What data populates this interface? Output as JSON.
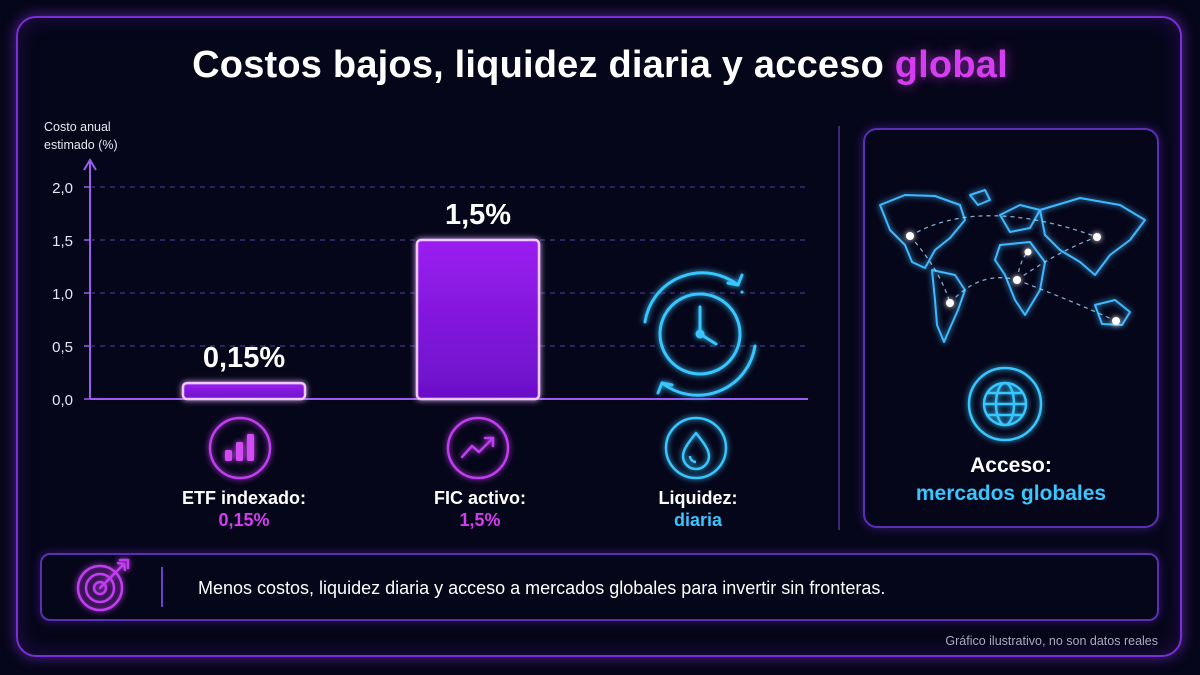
{
  "title": {
    "main": "Costos bajos, liquidez diaria y acceso",
    "accent": "global"
  },
  "colors": {
    "background": "#06061a",
    "purple": "#c03cf0",
    "bar_fill": "#8a16e6",
    "cyan": "#39c6ff",
    "grid": "#3a2f72"
  },
  "chart_data": {
    "type": "bar",
    "ylabel": "Costo anual estimado (%)",
    "ylim": [
      0,
      2.0
    ],
    "yticks": [
      "0,0",
      "0,5",
      "1,0",
      "1,5",
      "2,0"
    ],
    "categories": [
      "ETF indexado",
      "FIC activo"
    ],
    "values": [
      0.15,
      1.5
    ],
    "value_labels": [
      "0,15%",
      "1,5%"
    ],
    "grid": true
  },
  "categories": [
    {
      "line1": "ETF indexado:",
      "line2": "0,15%",
      "icon": "bar-chart-icon"
    },
    {
      "line1": "FIC activo:",
      "line2": "1,5%",
      "icon": "trend-up-icon"
    },
    {
      "line1": "Liquidez:",
      "line2": "diaria",
      "icon": "water-drop-icon"
    }
  ],
  "liquidity_icon": "clock-cycle-icon",
  "access": {
    "line1": "Acceso:",
    "line2": "mercados globales",
    "map_icon": "world-map-icon",
    "globe_icon": "globe-icon"
  },
  "banner": {
    "icon": "target-arrow-icon",
    "text": "Menos costos, liquidez diaria y acceso a mercados globales para invertir sin fronteras."
  },
  "footnote": "Gráfico ilustrativo, no son datos reales"
}
